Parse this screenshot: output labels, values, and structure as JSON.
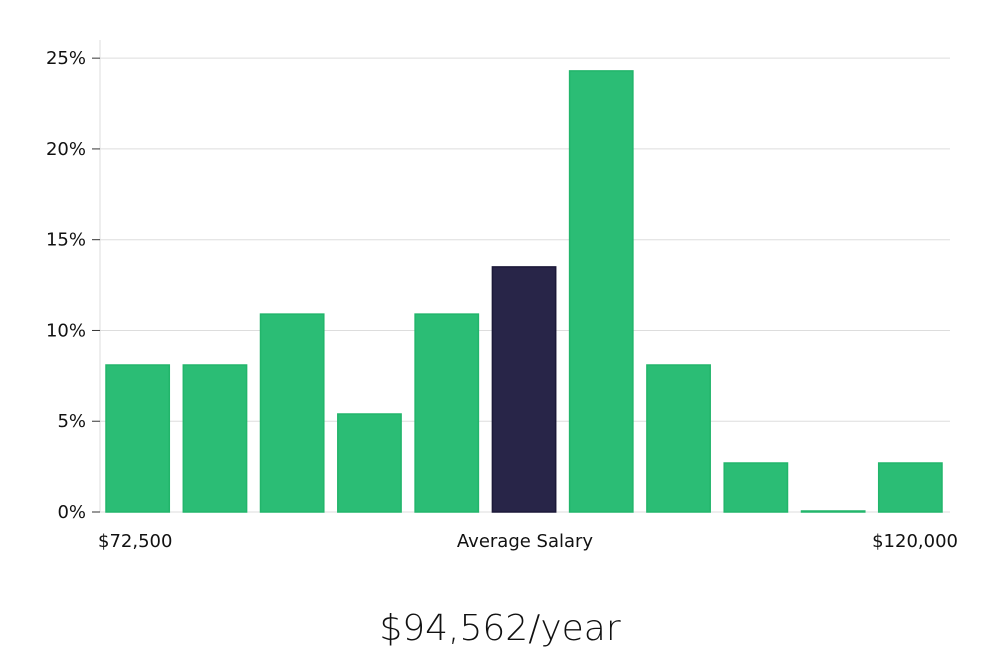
{
  "chart_data": {
    "type": "bar",
    "categories": [
      "",
      "",
      "",
      "",
      "",
      "",
      "",
      "",
      "",
      "",
      ""
    ],
    "values": [
      8.1,
      8.1,
      10.9,
      5.4,
      10.9,
      13.5,
      24.3,
      8.1,
      2.7,
      0,
      2.7
    ],
    "highlight_index": 5,
    "ylim": [
      0,
      26
    ],
    "yticks": [
      0,
      5,
      10,
      15,
      20,
      25
    ],
    "ytick_labels": [
      "0%",
      "5%",
      "10%",
      "15%",
      "20%",
      "25%"
    ],
    "grid": true,
    "x_axis_labels": {
      "left": "$72,500",
      "center": "Average Salary",
      "right": "$120,000"
    },
    "colors": {
      "bar": "#2bbd75",
      "highlight": "#282548",
      "grid": "#dddddd"
    }
  },
  "headline": {
    "salary": "$94,562/year"
  }
}
